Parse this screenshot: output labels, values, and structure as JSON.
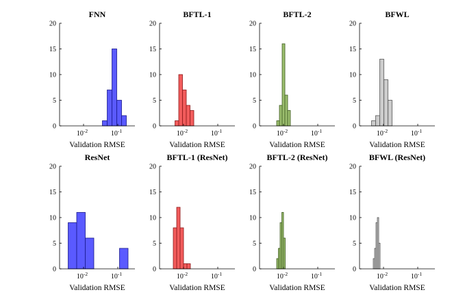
{
  "figure": {
    "rows": 2,
    "cols": 4
  },
  "chart_data": [
    {
      "type": "histogram",
      "title": "FNN",
      "color": "#5a5aff",
      "edge": "#1a1a8a",
      "xscale": "log",
      "xlim_exp": [
        -2.7,
        -0.5
      ],
      "ylim": [
        0,
        20
      ],
      "yticks": [
        0,
        5,
        10,
        15,
        20
      ],
      "xticks": [
        {
          "base": "10",
          "exp": "-2",
          "pos": -2
        },
        {
          "base": "10",
          "exp": "-1",
          "pos": -1
        }
      ],
      "xlabel": "Validation RMSE",
      "bins": [
        {
          "lo": -1.45,
          "hi": -1.31,
          "count": 1
        },
        {
          "lo": -1.31,
          "hi": -1.17,
          "count": 7
        },
        {
          "lo": -1.17,
          "hi": -1.03,
          "count": 15
        },
        {
          "lo": -1.03,
          "hi": -0.89,
          "count": 5
        },
        {
          "lo": -0.89,
          "hi": -0.75,
          "count": 2
        }
      ]
    },
    {
      "type": "histogram",
      "title": "BFTL-1",
      "color": "#f25c5c",
      "edge": "#8a1a1a",
      "xscale": "log",
      "xlim_exp": [
        -2.7,
        -0.5
      ],
      "ylim": [
        0,
        20
      ],
      "yticks": [
        0,
        5,
        10,
        15,
        20
      ],
      "xticks": [
        {
          "base": "10",
          "exp": "-2",
          "pos": -2
        },
        {
          "base": "10",
          "exp": "-1",
          "pos": -1
        }
      ],
      "xlabel": "Validation RMSE",
      "bins": [
        {
          "lo": -2.25,
          "hi": -2.14,
          "count": 1
        },
        {
          "lo": -2.14,
          "hi": -2.03,
          "count": 10
        },
        {
          "lo": -2.03,
          "hi": -1.92,
          "count": 7
        },
        {
          "lo": -1.92,
          "hi": -1.81,
          "count": 4
        },
        {
          "lo": -1.81,
          "hi": -1.7,
          "count": 3
        }
      ]
    },
    {
      "type": "histogram",
      "title": "BFTL-2",
      "color": "#9bbd6e",
      "edge": "#3d5a1e",
      "xscale": "log",
      "xlim_exp": [
        -2.7,
        -0.5
      ],
      "ylim": [
        0,
        20
      ],
      "yticks": [
        0,
        5,
        10,
        15,
        20
      ],
      "xticks": [
        {
          "base": "10",
          "exp": "-2",
          "pos": -2
        },
        {
          "base": "10",
          "exp": "-1",
          "pos": -1
        }
      ],
      "xlabel": "Validation RMSE",
      "bins": [
        {
          "lo": -2.2,
          "hi": -2.12,
          "count": 1
        },
        {
          "lo": -2.12,
          "hi": -2.04,
          "count": 4
        },
        {
          "lo": -2.04,
          "hi": -1.96,
          "count": 16
        },
        {
          "lo": -1.96,
          "hi": -1.88,
          "count": 6
        },
        {
          "lo": -1.88,
          "hi": -1.8,
          "count": 3
        }
      ]
    },
    {
      "type": "histogram",
      "title": "BFWL",
      "color": "#cccccc",
      "edge": "#555555",
      "xscale": "log",
      "xlim_exp": [
        -2.7,
        -0.5
      ],
      "ylim": [
        0,
        20
      ],
      "yticks": [
        0,
        5,
        10,
        15,
        20
      ],
      "xticks": [
        {
          "base": "10",
          "exp": "-2",
          "pos": -2
        },
        {
          "base": "10",
          "exp": "-1",
          "pos": -1
        }
      ],
      "xlabel": "Validation RMSE",
      "bins": [
        {
          "lo": -2.35,
          "hi": -2.23,
          "count": 1
        },
        {
          "lo": -2.23,
          "hi": -2.11,
          "count": 2
        },
        {
          "lo": -2.11,
          "hi": -1.99,
          "count": 13
        },
        {
          "lo": -1.99,
          "hi": -1.87,
          "count": 9
        },
        {
          "lo": -1.87,
          "hi": -1.75,
          "count": 5
        }
      ]
    },
    {
      "type": "histogram",
      "title": "ResNet",
      "color": "#5a5aff",
      "edge": "#1a1a8a",
      "xscale": "log",
      "xlim_exp": [
        -2.7,
        -0.5
      ],
      "ylim": [
        0,
        20
      ],
      "yticks": [
        0,
        5,
        10,
        15,
        20
      ],
      "xticks": [
        {
          "base": "10",
          "exp": "-2",
          "pos": -2
        },
        {
          "base": "10",
          "exp": "-1",
          "pos": -1
        }
      ],
      "xlabel": "Validation RMSE",
      "bins": [
        {
          "lo": -2.45,
          "hi": -2.2,
          "count": 9
        },
        {
          "lo": -2.2,
          "hi": -1.95,
          "count": 11
        },
        {
          "lo": -1.95,
          "hi": -1.7,
          "count": 6
        },
        {
          "lo": -1.7,
          "hi": -1.45,
          "count": 0
        },
        {
          "lo": -1.45,
          "hi": -1.2,
          "count": 0
        },
        {
          "lo": -0.95,
          "hi": -0.7,
          "count": 4
        }
      ]
    },
    {
      "type": "histogram",
      "title": "BFTL-1 (ResNet)",
      "color": "#f25c5c",
      "edge": "#8a1a1a",
      "xscale": "log",
      "xlim_exp": [
        -2.7,
        -0.5
      ],
      "ylim": [
        0,
        20
      ],
      "yticks": [
        0,
        5,
        10,
        15,
        20
      ],
      "xticks": [
        {
          "base": "10",
          "exp": "-2",
          "pos": -2
        },
        {
          "base": "10",
          "exp": "-1",
          "pos": -1
        }
      ],
      "xlabel": "Validation RMSE",
      "bins": [
        {
          "lo": -2.3,
          "hi": -2.2,
          "count": 8
        },
        {
          "lo": -2.2,
          "hi": -2.1,
          "count": 12
        },
        {
          "lo": -2.1,
          "hi": -2.0,
          "count": 8
        },
        {
          "lo": -2.0,
          "hi": -1.9,
          "count": 1
        },
        {
          "lo": -1.9,
          "hi": -1.8,
          "count": 1
        }
      ]
    },
    {
      "type": "histogram",
      "title": "BFTL-2 (ResNet)",
      "color": "#9bbd6e",
      "edge": "#3d5a1e",
      "xscale": "log",
      "xlim_exp": [
        -2.7,
        -0.5
      ],
      "ylim": [
        0,
        20
      ],
      "yticks": [
        0,
        5,
        10,
        15,
        20
      ],
      "xticks": [
        {
          "base": "10",
          "exp": "-2",
          "pos": -2
        },
        {
          "base": "10",
          "exp": "-1",
          "pos": -1
        }
      ],
      "xlabel": "Validation RMSE",
      "bins": [
        {
          "lo": -2.2,
          "hi": -2.15,
          "count": 2
        },
        {
          "lo": -2.15,
          "hi": -2.1,
          "count": 4
        },
        {
          "lo": -2.1,
          "hi": -2.05,
          "count": 9
        },
        {
          "lo": -2.05,
          "hi": -2.0,
          "count": 11
        },
        {
          "lo": -2.0,
          "hi": -1.95,
          "count": 6
        }
      ]
    },
    {
      "type": "histogram",
      "title": "BFWL (ResNet)",
      "color": "#cccccc",
      "edge": "#555555",
      "xscale": "log",
      "xlim_exp": [
        -2.7,
        -0.5
      ],
      "ylim": [
        0,
        20
      ],
      "yticks": [
        0,
        5,
        10,
        15,
        20
      ],
      "xticks": [
        {
          "base": "10",
          "exp": "-2",
          "pos": -2
        },
        {
          "base": "10",
          "exp": "-1",
          "pos": -1
        }
      ],
      "xlabel": "Validation RMSE",
      "bins": [
        {
          "lo": -2.3,
          "hi": -2.26,
          "count": 2
        },
        {
          "lo": -2.26,
          "hi": -2.22,
          "count": 4
        },
        {
          "lo": -2.22,
          "hi": -2.18,
          "count": 9
        },
        {
          "lo": -2.18,
          "hi": -2.14,
          "count": 10
        },
        {
          "lo": -2.14,
          "hi": -2.1,
          "count": 5
        }
      ]
    }
  ]
}
